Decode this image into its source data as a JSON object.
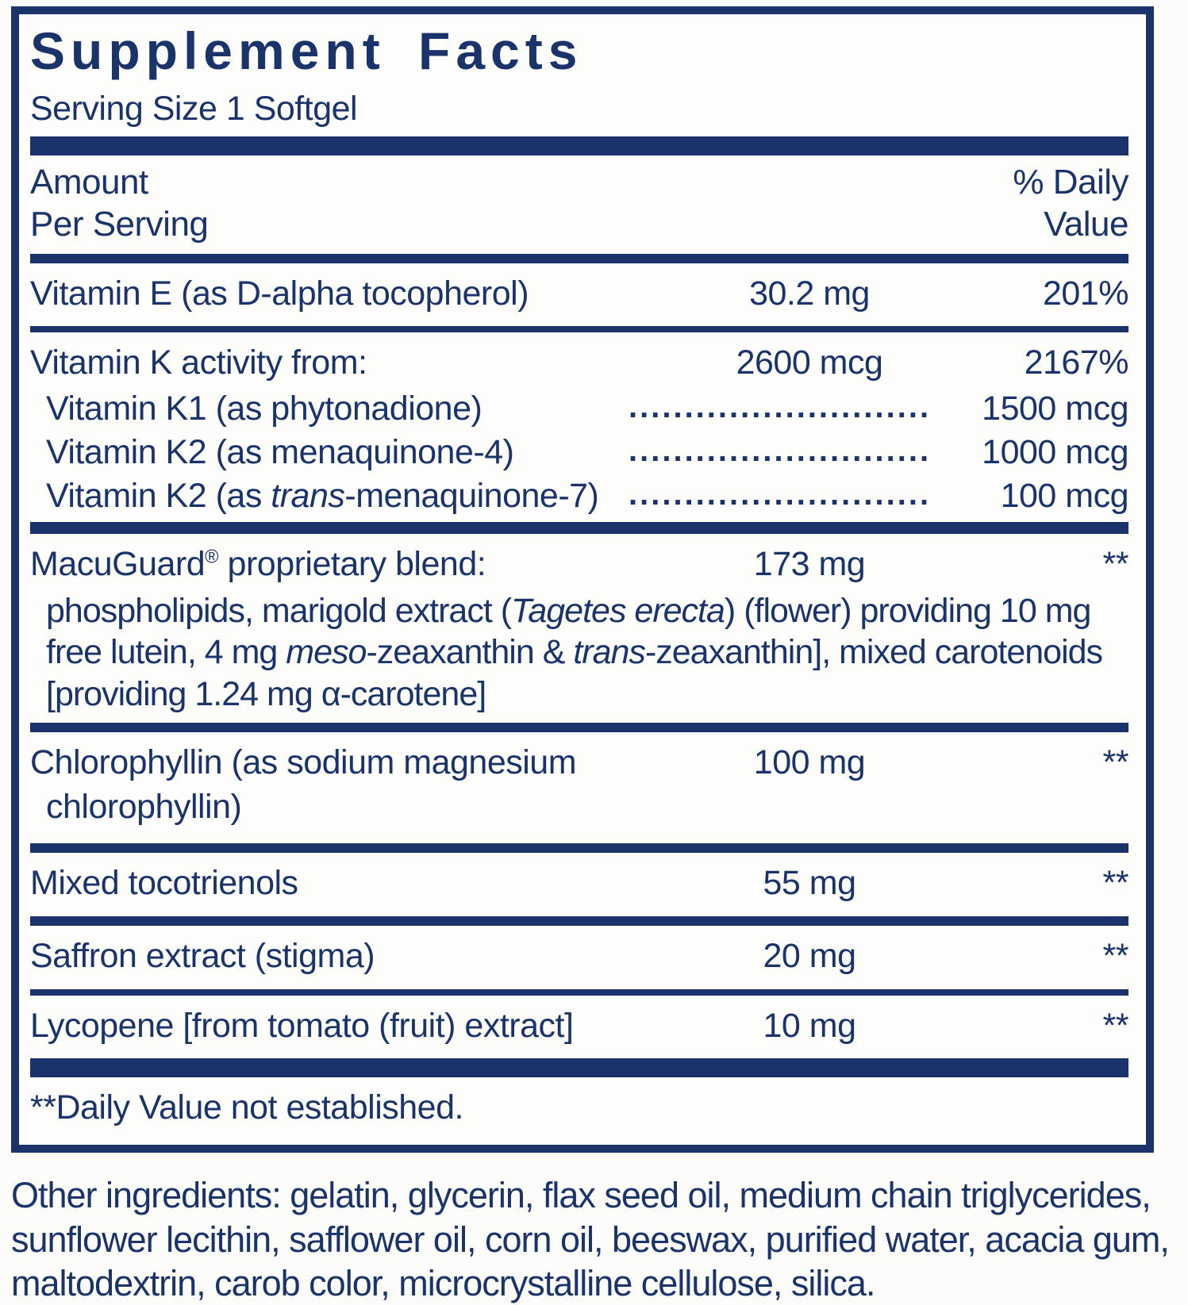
{
  "colors": {
    "navy": "#1b336b",
    "background": "#fcfcfa"
  },
  "panel": {
    "title": "Supplement Facts",
    "serving_size": "Serving Size 1 Softgel",
    "header": {
      "amount_line1": "Amount",
      "amount_line2": "Per Serving",
      "dv_line1": "% Daily",
      "dv_line2": "Value"
    },
    "footnote": "**Daily Value not established."
  },
  "rows": {
    "vitamin_e": {
      "name": "Vitamin E (as D-alpha tocopherol)",
      "amount": "30.2 mg",
      "dv": "201%"
    },
    "vitamin_k": {
      "name": "Vitamin K activity from:",
      "amount": "2600 mcg",
      "dv": "2167%",
      "subrows": [
        {
          "name": [
            {
              "t": "Vitamin K1 (as phytonadione)"
            }
          ],
          "dots": "............................",
          "value": "1500 mcg"
        },
        {
          "name": [
            {
              "t": "Vitamin K2 (as menaquinone-4)"
            }
          ],
          "dots": "............................",
          "value": "1000 mcg"
        },
        {
          "name": [
            {
              "t": "Vitamin K2 (as "
            },
            {
              "t": "trans",
              "i": true
            },
            {
              "t": "-menaquinone-7)"
            }
          ],
          "dots": "............................",
          "value": "100 mcg"
        }
      ]
    },
    "macuguard": {
      "name": [
        {
          "t": "MacuGuard"
        },
        {
          "t": "®",
          "sup": true
        },
        {
          "t": " proprietary blend:"
        }
      ],
      "amount": "173 mg",
      "dv": "**",
      "description": [
        {
          "t": "phospholipids, marigold extract ("
        },
        {
          "t": "Tagetes erecta",
          "i": true
        },
        {
          "t": ") (flower) providing 10 mg free lutein, 4 mg "
        },
        {
          "t": "meso",
          "i": true
        },
        {
          "t": "-zeaxanthin & "
        },
        {
          "t": "trans",
          "i": true
        },
        {
          "t": "-zeaxanthin], mixed carotenoids [providing 1.24 mg α-carotene]"
        }
      ]
    },
    "chlorophyllin": {
      "name_line1": "Chlorophyllin (as sodium magnesium",
      "name_line2": "chlorophyllin)",
      "amount": "100 mg",
      "dv": "**"
    },
    "mixed_tocotrienols": {
      "name": "Mixed tocotrienols",
      "amount": "55 mg",
      "dv": "**"
    },
    "saffron": {
      "name": "Saffron extract (stigma)",
      "amount": "20 mg",
      "dv": "**"
    },
    "lycopene": {
      "name": "Lycopene [from tomato (fruit) extract]",
      "amount": "10 mg",
      "dv": "**"
    }
  },
  "other_ingredients": "Other ingredients: gelatin, glycerin, flax seed oil, medium chain triglycerides, sunflower lecithin, safflower oil, corn oil, beeswax, purified water, acacia gum, maltodextrin, carob color, microcrystalline cellulose, silica."
}
